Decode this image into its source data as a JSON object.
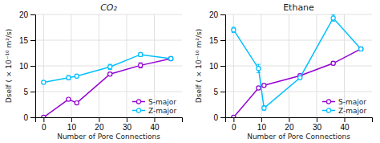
{
  "chart_data": [
    {
      "type": "line",
      "title": "CO₂",
      "xlabel": "Number of Pore Connections",
      "ylabel": "Dself ( × 10⁻¹⁰ m²/s)",
      "x": [
        0,
        9,
        12,
        24,
        35,
        46
      ],
      "series": [
        {
          "name": "S-major",
          "color": "#9400d3",
          "marker": "circle",
          "values": [
            0.0,
            3.5,
            2.8,
            8.4,
            10.1,
            11.4
          ],
          "errors": [
            0.0,
            0.2,
            0.2,
            0.3,
            0.5,
            0.3
          ]
        },
        {
          "name": "Z-major",
          "color": "#00bfff",
          "marker": "circle",
          "values": [
            6.8,
            7.7,
            8.0,
            9.8,
            12.2,
            11.4
          ],
          "errors": [
            0.3,
            0.4,
            0.3,
            0.5,
            0.4,
            0.3
          ]
        }
      ],
      "xlim": [
        -3,
        50
      ],
      "xticks": [
        0,
        10,
        20,
        30,
        40
      ],
      "ylim": [
        0,
        20
      ],
      "yticks": [
        0,
        5,
        10,
        15,
        20
      ],
      "grid": true,
      "legend": "lower right"
    },
    {
      "type": "line",
      "title": "Ethane",
      "xlabel": "Number of Pore Connections",
      "ylabel": "Dself ( × 10⁻¹⁰ m²/s)",
      "x": [
        0,
        9,
        11,
        24,
        36,
        46
      ],
      "series": [
        {
          "name": "S-major",
          "color": "#9400d3",
          "marker": "circle",
          "values": [
            0.0,
            5.7,
            6.2,
            8.1,
            10.5,
            13.3
          ],
          "errors": [
            0.0,
            0.2,
            0.2,
            0.3,
            0.3,
            0.3
          ]
        },
        {
          "name": "Z-major",
          "color": "#00bfff",
          "marker": "circle",
          "values": [
            17.0,
            9.5,
            1.8,
            7.7,
            19.3,
            13.3
          ],
          "errors": [
            0.5,
            0.8,
            0.4,
            0.3,
            0.6,
            0.3
          ]
        }
      ],
      "xlim": [
        -3,
        50
      ],
      "xticks": [
        0,
        10,
        20,
        30,
        40
      ],
      "ylim": [
        0,
        20
      ],
      "yticks": [
        0,
        5,
        10,
        15,
        20
      ],
      "grid": true,
      "legend": "lower right"
    }
  ]
}
